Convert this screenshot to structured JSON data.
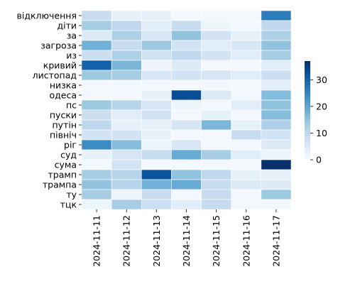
{
  "chart_data": {
    "type": "heatmap",
    "title": "",
    "xlabel": "",
    "ylabel": "",
    "x": [
      "2024-11-11",
      "2024-11-12",
      "2024-11-13",
      "2024-11-14",
      "2024-11-15",
      "2024-11-16",
      "2024-11-17"
    ],
    "y": [
      "відключення",
      "діти",
      "за",
      "загроза",
      "из",
      "кривий",
      "листопад",
      "низка",
      "одеса",
      "пс",
      "пуски",
      "путін",
      "північ",
      "ріг",
      "суд",
      "сума",
      "трамп",
      "трампа",
      "ту",
      "тцк"
    ],
    "values": [
      [
        9,
        3,
        3,
        1,
        1,
        1,
        26
      ],
      [
        13,
        10,
        4,
        9,
        2,
        1,
        10
      ],
      [
        5,
        12,
        6,
        15,
        7,
        3,
        12
      ],
      [
        18,
        9,
        14,
        7,
        4,
        6,
        15
      ],
      [
        8,
        12,
        7,
        10,
        7,
        4,
        13
      ],
      [
        30,
        17,
        2,
        5,
        1,
        1,
        4
      ],
      [
        14,
        13,
        6,
        7,
        6,
        4,
        8
      ],
      [
        1,
        1,
        1,
        1,
        1,
        1,
        4
      ],
      [
        1,
        1,
        3,
        33,
        5,
        1,
        16
      ],
      [
        14,
        11,
        6,
        2,
        1,
        4,
        15
      ],
      [
        8,
        4,
        7,
        1,
        3,
        1,
        16
      ],
      [
        10,
        3,
        3,
        6,
        17,
        3,
        12
      ],
      [
        7,
        7,
        3,
        1,
        1,
        9,
        7
      ],
      [
        24,
        16,
        2,
        6,
        1,
        1,
        5
      ],
      [
        3,
        6,
        9,
        19,
        13,
        4,
        2
      ],
      [
        1,
        7,
        1,
        1,
        1,
        1,
        37
      ],
      [
        13,
        11,
        32,
        15,
        10,
        3,
        3
      ],
      [
        15,
        11,
        18,
        19,
        9,
        5,
        5
      ],
      [
        13,
        2,
        9,
        1,
        9,
        1,
        14
      ],
      [
        2,
        13,
        8,
        4,
        9,
        1,
        1
      ]
    ],
    "colormap": "Blues",
    "vmin": 0,
    "vmax": 37,
    "colorbar_ticks": [
      0,
      10,
      20,
      30
    ]
  }
}
